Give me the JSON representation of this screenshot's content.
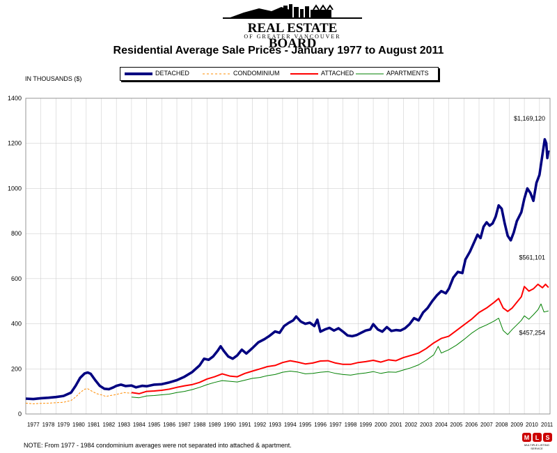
{
  "brand": {
    "name": "REAL ESTATE BOARD",
    "sub": "OF GREATER VANCOUVER",
    "mls_caption": "MULTIPLE LISTING SERVICE"
  },
  "units_label": "IN THOUSANDS ($)",
  "note": "NOTE:  From 1977 - 1984 condominium averages were not separated into attached & apartment.",
  "chart_data": {
    "type": "line",
    "title": "Residential Average Sale Prices  -  January 1977 to August 2011",
    "ylabel": "IN THOUSANDS ($)",
    "ylim": [
      0,
      1400
    ],
    "yticks": [
      0,
      200,
      400,
      600,
      800,
      1000,
      1200,
      1400
    ],
    "xlim": [
      1977,
      2011.7
    ],
    "categories": [
      "1977",
      "1978",
      "1979",
      "1980",
      "1981",
      "1982",
      "1983",
      "1984",
      "1985",
      "1986",
      "1987",
      "1988",
      "1989",
      "1990",
      "1991",
      "1992",
      "1993",
      "1994",
      "1995",
      "1996",
      "1997",
      "1998",
      "1999",
      "2000",
      "2001",
      "2002",
      "2003",
      "2004",
      "2005",
      "2006",
      "2007",
      "2008",
      "2009",
      "2010",
      "2011"
    ],
    "grid": true,
    "legend_position": "top",
    "annotations": [
      {
        "text": "$1,169,120",
        "x": 2011.6,
        "y": 1169.12
      },
      {
        "text": "$561,101",
        "x": 2011.6,
        "y": 561.1
      },
      {
        "text": "$457,254",
        "x": 2011.6,
        "y": 457.25
      }
    ],
    "series": [
      {
        "name": "DETACHED",
        "color": "#000080",
        "style": "solid-thick",
        "points": [
          [
            1977,
            68
          ],
          [
            1977.5,
            66
          ],
          [
            1978,
            70
          ],
          [
            1978.5,
            72
          ],
          [
            1979,
            75
          ],
          [
            1979.5,
            80
          ],
          [
            1980,
            95
          ],
          [
            1980.3,
            125
          ],
          [
            1980.6,
            160
          ],
          [
            1980.9,
            180
          ],
          [
            1981.1,
            184
          ],
          [
            1981.3,
            178
          ],
          [
            1981.6,
            150
          ],
          [
            1981.9,
            125
          ],
          [
            1982.2,
            112
          ],
          [
            1982.5,
            110
          ],
          [
            1982.8,
            118
          ],
          [
            1983,
            125
          ],
          [
            1983.3,
            130
          ],
          [
            1983.6,
            124
          ],
          [
            1984,
            126
          ],
          [
            1984.3,
            118
          ],
          [
            1984.7,
            125
          ],
          [
            1985,
            123
          ],
          [
            1985.5,
            130
          ],
          [
            1986,
            132
          ],
          [
            1986.5,
            140
          ],
          [
            1987,
            150
          ],
          [
            1987.5,
            165
          ],
          [
            1988,
            185
          ],
          [
            1988.5,
            215
          ],
          [
            1988.8,
            245
          ],
          [
            1989.1,
            240
          ],
          [
            1989.4,
            255
          ],
          [
            1989.7,
            280
          ],
          [
            1989.9,
            300
          ],
          [
            1990.1,
            280
          ],
          [
            1990.4,
            255
          ],
          [
            1990.7,
            245
          ],
          [
            1991,
            260
          ],
          [
            1991.3,
            285
          ],
          [
            1991.6,
            268
          ],
          [
            1992,
            292
          ],
          [
            1992.4,
            318
          ],
          [
            1992.8,
            332
          ],
          [
            1993.1,
            345
          ],
          [
            1993.5,
            366
          ],
          [
            1993.8,
            360
          ],
          [
            1994.1,
            390
          ],
          [
            1994.4,
            404
          ],
          [
            1994.7,
            415
          ],
          [
            1994.9,
            432
          ],
          [
            1995.2,
            410
          ],
          [
            1995.5,
            400
          ],
          [
            1995.8,
            405
          ],
          [
            1996.1,
            390
          ],
          [
            1996.3,
            418
          ],
          [
            1996.5,
            365
          ],
          [
            1996.8,
            375
          ],
          [
            1997.1,
            382
          ],
          [
            1997.4,
            370
          ],
          [
            1997.7,
            380
          ],
          [
            1998,
            365
          ],
          [
            1998.3,
            348
          ],
          [
            1998.6,
            345
          ],
          [
            1998.9,
            350
          ],
          [
            1999.2,
            360
          ],
          [
            1999.5,
            370
          ],
          [
            1999.8,
            375
          ],
          [
            2000,
            398
          ],
          [
            2000.3,
            375
          ],
          [
            2000.6,
            365
          ],
          [
            2000.9,
            385
          ],
          [
            2001.2,
            368
          ],
          [
            2001.5,
            372
          ],
          [
            2001.8,
            370
          ],
          [
            2002.1,
            380
          ],
          [
            2002.4,
            398
          ],
          [
            2002.7,
            425
          ],
          [
            2003,
            415
          ],
          [
            2003.3,
            450
          ],
          [
            2003.6,
            470
          ],
          [
            2003.9,
            500
          ],
          [
            2004.2,
            525
          ],
          [
            2004.5,
            545
          ],
          [
            2004.8,
            535
          ],
          [
            2005,
            555
          ],
          [
            2005.3,
            605
          ],
          [
            2005.6,
            630
          ],
          [
            2005.9,
            625
          ],
          [
            2006.1,
            685
          ],
          [
            2006.4,
            720
          ],
          [
            2006.7,
            765
          ],
          [
            2006.9,
            795
          ],
          [
            2007.1,
            780
          ],
          [
            2007.3,
            830
          ],
          [
            2007.5,
            850
          ],
          [
            2007.7,
            835
          ],
          [
            2007.9,
            845
          ],
          [
            2008.1,
            875
          ],
          [
            2008.3,
            925
          ],
          [
            2008.5,
            910
          ],
          [
            2008.7,
            845
          ],
          [
            2008.9,
            790
          ],
          [
            2009.1,
            770
          ],
          [
            2009.3,
            805
          ],
          [
            2009.5,
            855
          ],
          [
            2009.8,
            895
          ],
          [
            2010,
            955
          ],
          [
            2010.2,
            1000
          ],
          [
            2010.4,
            980
          ],
          [
            2010.6,
            945
          ],
          [
            2010.8,
            1025
          ],
          [
            2011,
            1060
          ],
          [
            2011.2,
            1150
          ],
          [
            2011.35,
            1218
          ],
          [
            2011.45,
            1200
          ],
          [
            2011.52,
            1135
          ],
          [
            2011.6,
            1169
          ]
        ]
      },
      {
        "name": "CONDOMINIUM",
        "color": "#FF8C00",
        "style": "dashed",
        "points": [
          [
            1977,
            48
          ],
          [
            1977.5,
            45
          ],
          [
            1978,
            47
          ],
          [
            1978.5,
            48
          ],
          [
            1979,
            50
          ],
          [
            1979.5,
            52
          ],
          [
            1980,
            60
          ],
          [
            1980.3,
            75
          ],
          [
            1980.6,
            95
          ],
          [
            1980.9,
            110
          ],
          [
            1981.1,
            112
          ],
          [
            1981.4,
            100
          ],
          [
            1981.7,
            90
          ],
          [
            1982,
            85
          ],
          [
            1982.3,
            78
          ],
          [
            1982.6,
            82
          ],
          [
            1982.9,
            85
          ],
          [
            1983.2,
            90
          ],
          [
            1983.5,
            95
          ],
          [
            1983.8,
            93
          ],
          [
            1984,
            92
          ]
        ]
      },
      {
        "name": "ATTACHED",
        "color": "#FF0000",
        "style": "solid",
        "points": [
          [
            1984,
            95
          ],
          [
            1984.5,
            90
          ],
          [
            1985,
            100
          ],
          [
            1985.5,
            102
          ],
          [
            1986,
            105
          ],
          [
            1986.5,
            110
          ],
          [
            1987,
            118
          ],
          [
            1987.5,
            125
          ],
          [
            1988,
            130
          ],
          [
            1988.5,
            140
          ],
          [
            1989,
            155
          ],
          [
            1989.5,
            165
          ],
          [
            1990,
            178
          ],
          [
            1990.5,
            168
          ],
          [
            1991,
            165
          ],
          [
            1991.5,
            180
          ],
          [
            1992,
            190
          ],
          [
            1992.5,
            200
          ],
          [
            1993,
            210
          ],
          [
            1993.5,
            215
          ],
          [
            1994,
            228
          ],
          [
            1994.5,
            236
          ],
          [
            1995,
            230
          ],
          [
            1995.5,
            222
          ],
          [
            1996,
            226
          ],
          [
            1996.5,
            235
          ],
          [
            1997,
            236
          ],
          [
            1997.5,
            226
          ],
          [
            1998,
            220
          ],
          [
            1998.5,
            220
          ],
          [
            1999,
            228
          ],
          [
            1999.5,
            232
          ],
          [
            2000,
            238
          ],
          [
            2000.5,
            230
          ],
          [
            2001,
            240
          ],
          [
            2001.5,
            236
          ],
          [
            2002,
            250
          ],
          [
            2002.5,
            260
          ],
          [
            2003,
            270
          ],
          [
            2003.5,
            290
          ],
          [
            2004,
            315
          ],
          [
            2004.5,
            335
          ],
          [
            2005,
            345
          ],
          [
            2005.5,
            370
          ],
          [
            2006,
            395
          ],
          [
            2006.5,
            420
          ],
          [
            2007,
            450
          ],
          [
            2007.5,
            470
          ],
          [
            2008,
            495
          ],
          [
            2008.3,
            512
          ],
          [
            2008.6,
            470
          ],
          [
            2008.9,
            455
          ],
          [
            2009.2,
            470
          ],
          [
            2009.5,
            495
          ],
          [
            2009.8,
            520
          ],
          [
            2010,
            565
          ],
          [
            2010.3,
            545
          ],
          [
            2010.6,
            555
          ],
          [
            2010.9,
            575
          ],
          [
            2011.2,
            560
          ],
          [
            2011.4,
            575
          ],
          [
            2011.6,
            561
          ]
        ]
      },
      {
        "name": "APARTMENTS",
        "color": "#008000",
        "style": "solid",
        "points": [
          [
            1984,
            75
          ],
          [
            1984.5,
            72
          ],
          [
            1985,
            80
          ],
          [
            1985.5,
            82
          ],
          [
            1986,
            85
          ],
          [
            1986.5,
            88
          ],
          [
            1987,
            95
          ],
          [
            1987.5,
            100
          ],
          [
            1988,
            108
          ],
          [
            1988.5,
            118
          ],
          [
            1989,
            130
          ],
          [
            1989.5,
            140
          ],
          [
            1990,
            148
          ],
          [
            1990.5,
            145
          ],
          [
            1991,
            142
          ],
          [
            1991.5,
            150
          ],
          [
            1992,
            158
          ],
          [
            1992.5,
            162
          ],
          [
            1993,
            170
          ],
          [
            1993.5,
            175
          ],
          [
            1994,
            185
          ],
          [
            1994.5,
            190
          ],
          [
            1995,
            186
          ],
          [
            1995.5,
            178
          ],
          [
            1996,
            180
          ],
          [
            1996.5,
            185
          ],
          [
            1997,
            188
          ],
          [
            1997.5,
            180
          ],
          [
            1998,
            175
          ],
          [
            1998.5,
            172
          ],
          [
            1999,
            178
          ],
          [
            1999.5,
            182
          ],
          [
            2000,
            188
          ],
          [
            2000.5,
            180
          ],
          [
            2001,
            186
          ],
          [
            2001.5,
            185
          ],
          [
            2002,
            195
          ],
          [
            2002.5,
            205
          ],
          [
            2003,
            218
          ],
          [
            2003.5,
            238
          ],
          [
            2004,
            262
          ],
          [
            2004.3,
            300
          ],
          [
            2004.5,
            270
          ],
          [
            2005,
            285
          ],
          [
            2005.5,
            305
          ],
          [
            2006,
            330
          ],
          [
            2006.5,
            358
          ],
          [
            2007,
            380
          ],
          [
            2007.5,
            395
          ],
          [
            2008,
            412
          ],
          [
            2008.3,
            425
          ],
          [
            2008.6,
            370
          ],
          [
            2008.9,
            352
          ],
          [
            2009.2,
            375
          ],
          [
            2009.5,
            395
          ],
          [
            2009.8,
            415
          ],
          [
            2010,
            435
          ],
          [
            2010.3,
            420
          ],
          [
            2010.6,
            440
          ],
          [
            2010.9,
            462
          ],
          [
            2011.1,
            488
          ],
          [
            2011.3,
            452
          ],
          [
            2011.6,
            457
          ]
        ]
      }
    ]
  }
}
